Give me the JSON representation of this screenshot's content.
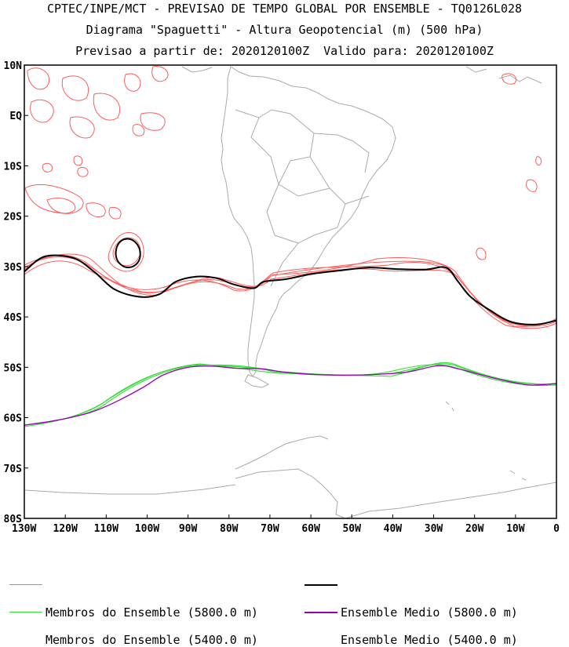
{
  "titles": {
    "line1": "CPTEC/INPE/MCT - PREVISAO DE TEMPO GLOBAL POR ENSEMBLE - TQ0126L028",
    "line2": "Diagrama \"Spaguetti\" - Altura Geopotencial (m) (500 hPa)",
    "line3": "Previsao a partir de: 2020120100Z  Valido para: 2020120100Z"
  },
  "map": {
    "lon_range": [
      -130,
      0
    ],
    "lat_range": [
      -80,
      10
    ],
    "lat_labels": [
      "10N",
      "EQ",
      "10S",
      "20S",
      "30S",
      "40S",
      "50S",
      "60S",
      "70S",
      "80S"
    ],
    "lon_labels": [
      "130W",
      "120W",
      "110W",
      "100W",
      "90W",
      "80W",
      "70W",
      "60W",
      "50W",
      "40W",
      "30W",
      "20W",
      "10W",
      "0"
    ],
    "coastline_color": "#aaaaaa"
  },
  "contours": {
    "z5800_mean": [
      [
        -130,
        -31
      ],
      [
        -125,
        -28
      ],
      [
        -118,
        -28.3
      ],
      [
        -113,
        -31
      ],
      [
        -108,
        -34.5
      ],
      [
        -102,
        -36
      ],
      [
        -97,
        -35.5
      ],
      [
        -93,
        -33
      ],
      [
        -88,
        -32
      ],
      [
        -83,
        -32.3
      ],
      [
        -79,
        -33.5
      ],
      [
        -74,
        -34.3
      ],
      [
        -71.5,
        -33
      ],
      [
        -66,
        -32.5
      ],
      [
        -60,
        -31.5
      ],
      [
        -53,
        -30.8
      ],
      [
        -46,
        -30.2
      ],
      [
        -39,
        -30.5
      ],
      [
        -32,
        -30.6
      ],
      [
        -27,
        -30.2
      ],
      [
        -24,
        -33
      ],
      [
        -21,
        -36
      ],
      [
        -16,
        -38.8
      ],
      [
        -11,
        -41
      ],
      [
        -5,
        -41.5
      ],
      [
        0,
        -40.7
      ]
    ],
    "z5400_mean": [
      [
        -130,
        -61.5
      ],
      [
        -122,
        -60.5
      ],
      [
        -114,
        -59
      ],
      [
        -108,
        -57
      ],
      [
        -101,
        -54
      ],
      [
        -96,
        -51.5
      ],
      [
        -90,
        -50
      ],
      [
        -84,
        -49.8
      ],
      [
        -78,
        -50.2
      ],
      [
        -72,
        -50.3
      ],
      [
        -66,
        -51
      ],
      [
        -57,
        -51.5
      ],
      [
        -47,
        -51.5
      ],
      [
        -37,
        -51
      ],
      [
        -29,
        -49.7
      ],
      [
        -24,
        -50.3
      ],
      [
        -16,
        -52
      ],
      [
        -7,
        -53.5
      ],
      [
        0,
        -53.2
      ]
    ]
  },
  "legend": {
    "members_5800": {
      "label": "Membros do Ensemble (5800.0 m)",
      "color": "#ff6a6a"
    },
    "mean_5800": {
      "label": "Ensemble Medio (5800.0 m)",
      "color": "#000000"
    },
    "members_5400": {
      "label": "Membros do Ensemble (5400.0 m)",
      "color": "#33dd33"
    },
    "mean_5400": {
      "label": "Ensemble Medio (5400.0 m)",
      "color": "#9900bb"
    }
  }
}
